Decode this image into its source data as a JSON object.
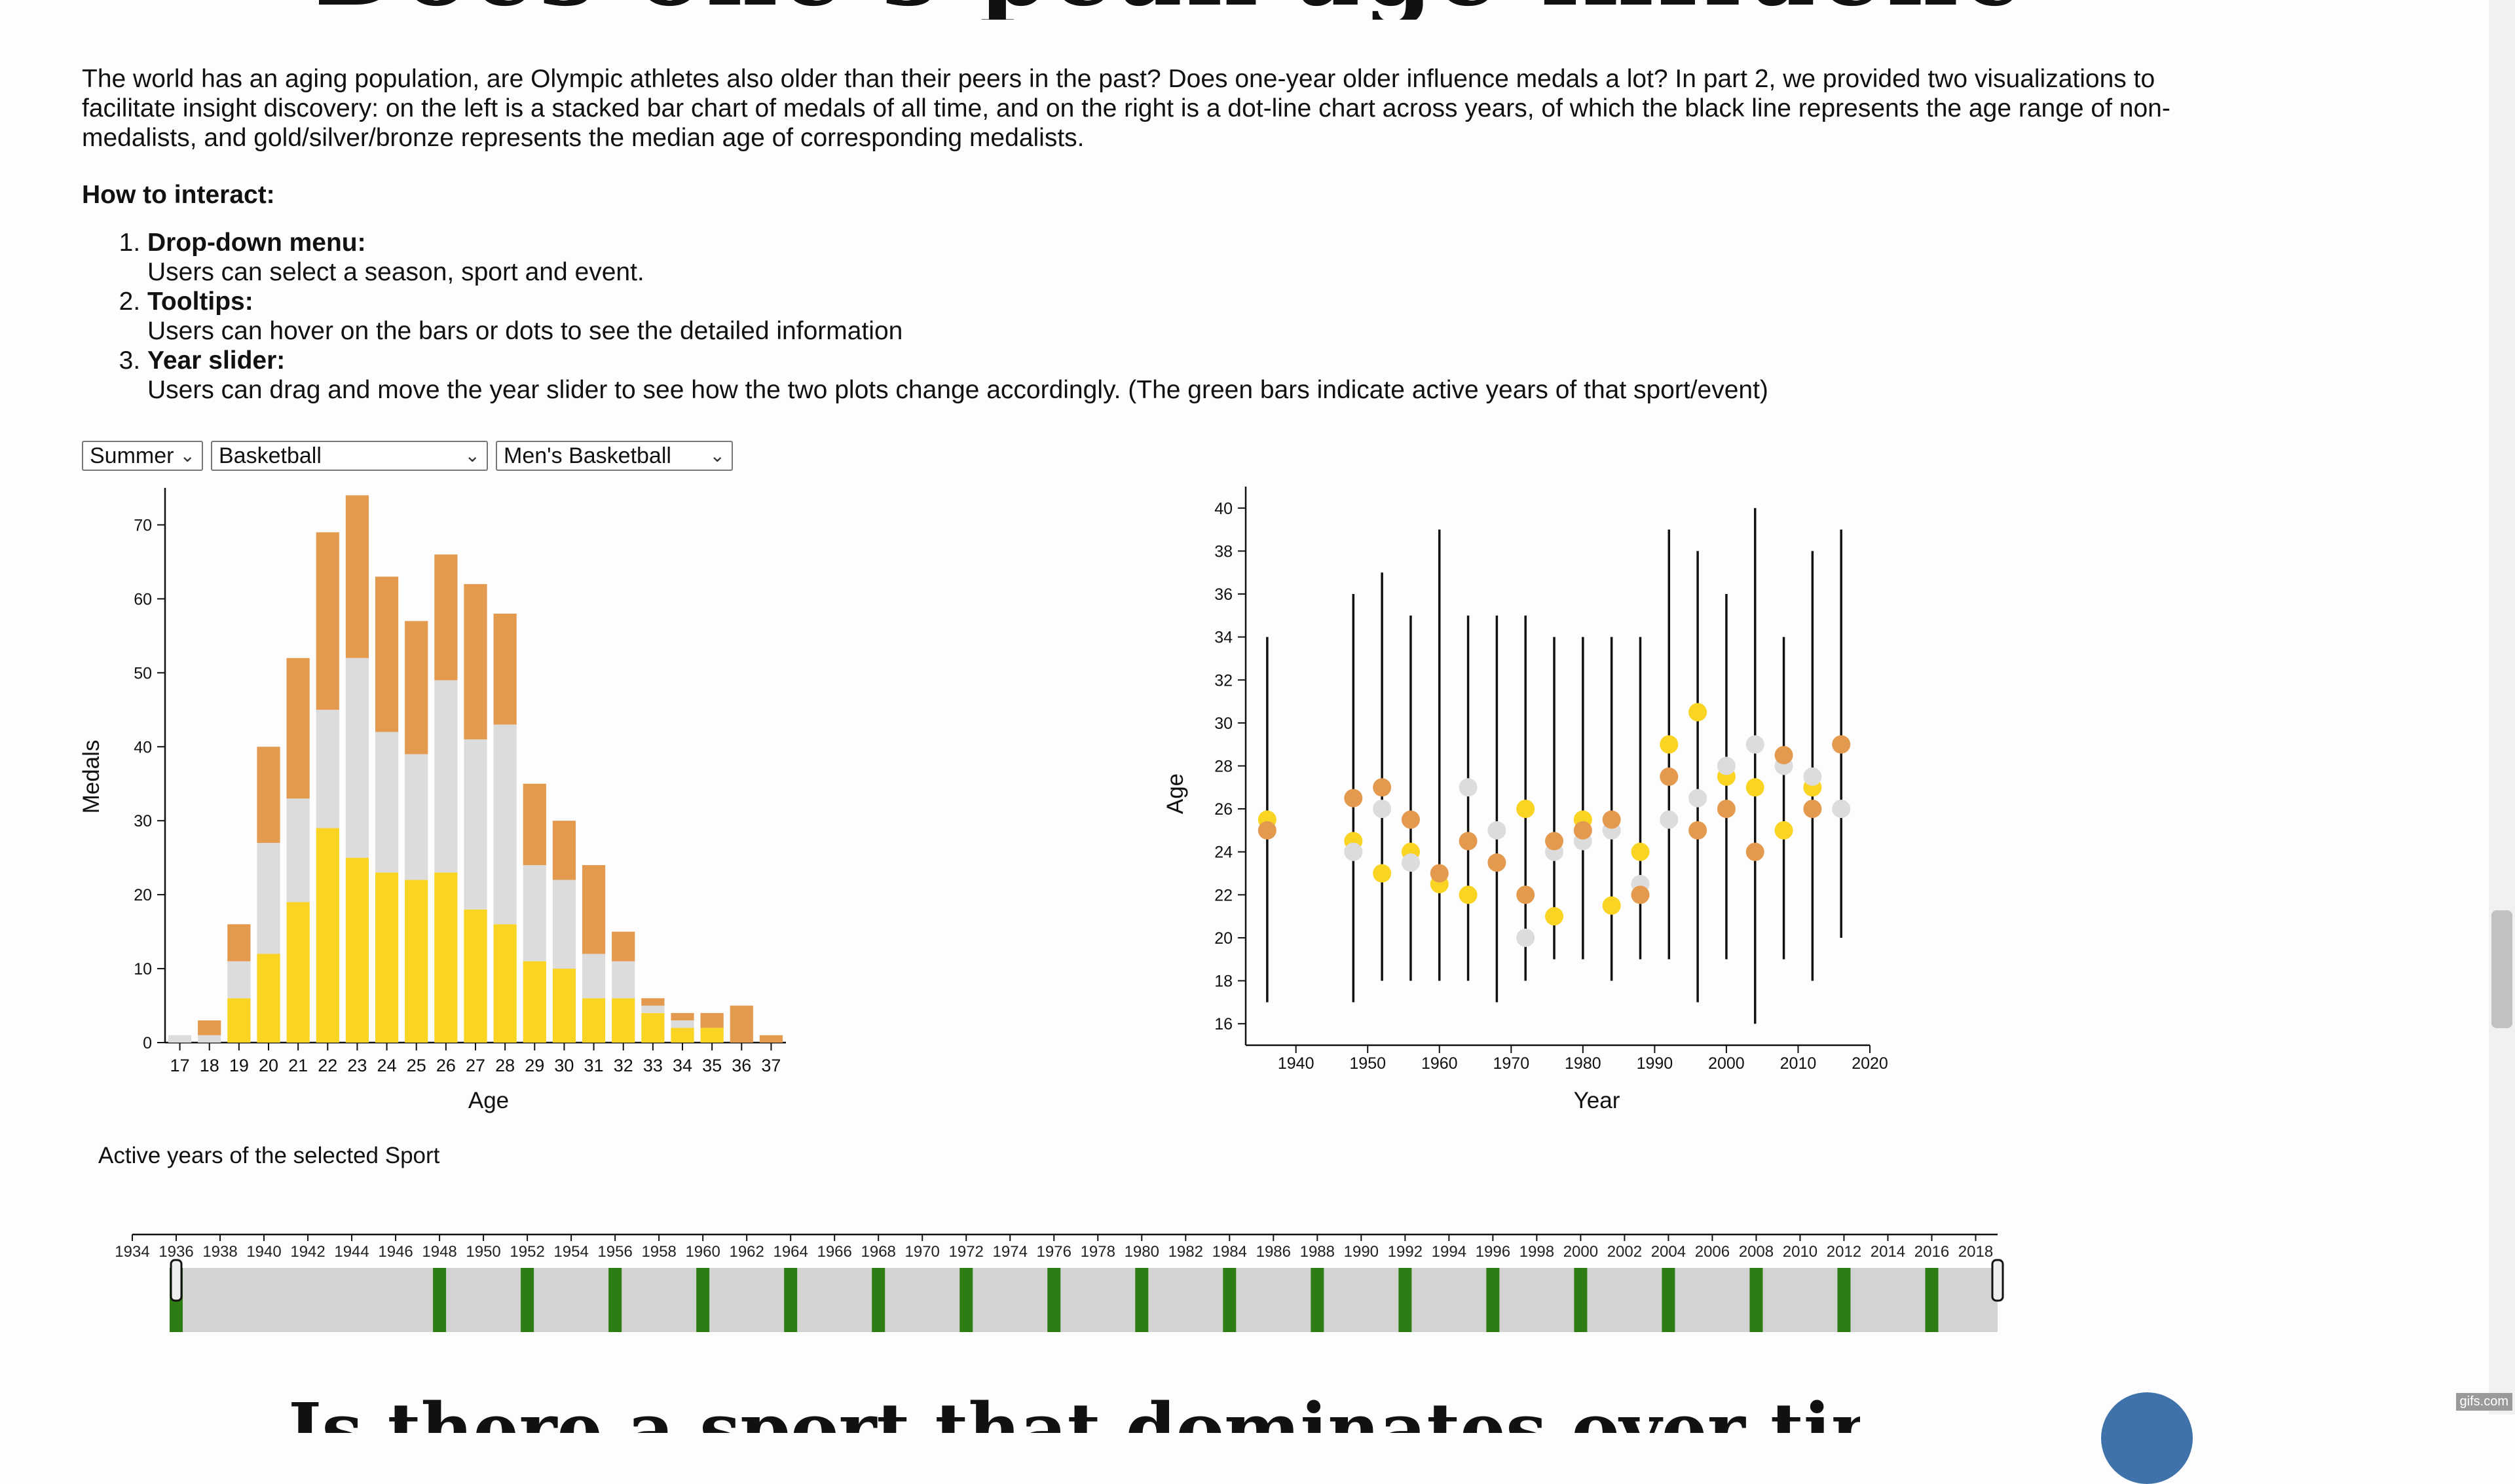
{
  "page": {
    "title_fragment": "Does one's peak age influence medals",
    "intro": "The world has an aging population, are Olympic athletes also older than their peers in the past? Does one-year older influence medals a lot? In part 2, we provided two visualizations to facilitate insight discovery: on the left is a stacked bar chart of medals of all time, and on the right is a dot-line chart across years, of which the black line represents the age range of non-medalists, and gold/silver/bronze represents the median age of corresponding medalists.",
    "howto_heading": "How to interact:",
    "steps": [
      {
        "title": "Drop-down menu:",
        "text": "Users can select a season, sport and event."
      },
      {
        "title": "Tooltips:",
        "text": "Users can hover on the bars or dots to see the detailed information"
      },
      {
        "title": "Year slider:",
        "text": "Users can drag and move the year slider to see how the two plots change accordingly. (The green bars indicate active years of that sport/event)"
      }
    ],
    "bottom_heading_fragment": "Is there a sport that dominates over time",
    "watermark": "gifs.com"
  },
  "controls": {
    "season": "Summer",
    "sport": "Basketball",
    "event": "Men's Basketball"
  },
  "slider": {
    "label": "Active years of the selected Sport",
    "ticks": [
      1934,
      1936,
      1938,
      1940,
      1942,
      1944,
      1946,
      1948,
      1950,
      1952,
      1954,
      1956,
      1958,
      1960,
      1962,
      1964,
      1966,
      1968,
      1970,
      1972,
      1974,
      1976,
      1978,
      1980,
      1982,
      1984,
      1986,
      1988,
      1990,
      1992,
      1994,
      1996,
      1998,
      2000,
      2002,
      2004,
      2006,
      2008,
      2010,
      2012,
      2014,
      2016,
      2018
    ],
    "active_years": [
      1936,
      1948,
      1952,
      1956,
      1960,
      1964,
      1968,
      1972,
      1976,
      1980,
      1984,
      1988,
      1992,
      1996,
      2000,
      2004,
      2008,
      2012,
      2016
    ],
    "range": [
      1934,
      2019
    ],
    "selection": [
      1936,
      2019
    ],
    "active_color": "#2e7d14",
    "track_color": "#d3d3d3"
  },
  "chart_data": [
    {
      "type": "bar",
      "stacked": true,
      "xlabel": "Age",
      "ylabel": "Medals",
      "ylim": [
        0,
        75
      ],
      "yticks": [
        0,
        10,
        20,
        30,
        40,
        50,
        60,
        70
      ],
      "categories": [
        "17",
        "18",
        "19",
        "20",
        "21",
        "22",
        "23",
        "24",
        "25",
        "26",
        "27",
        "28",
        "29",
        "30",
        "31",
        "32",
        "33",
        "34",
        "35",
        "36",
        "37"
      ],
      "series": [
        {
          "key": "gold",
          "color": "#f9d423",
          "values": [
            0,
            0,
            6,
            12,
            19,
            29,
            25,
            23,
            22,
            23,
            18,
            16,
            11,
            10,
            6,
            6,
            4,
            2,
            2,
            0,
            0
          ]
        },
        {
          "key": "silver",
          "color": "#dcdcdc",
          "values": [
            1,
            1,
            5,
            15,
            14,
            16,
            27,
            19,
            17,
            26,
            23,
            27,
            13,
            12,
            6,
            5,
            1,
            1,
            0,
            0,
            0
          ]
        },
        {
          "key": "bronze",
          "color": "#e39a4f",
          "values": [
            0,
            2,
            5,
            13,
            19,
            24,
            22,
            21,
            18,
            17,
            21,
            15,
            11,
            8,
            12,
            4,
            1,
            1,
            2,
            5,
            1
          ]
        }
      ]
    },
    {
      "type": "scatter",
      "subtype": "dot-line",
      "xlabel": "Year",
      "ylabel": "Age",
      "xlim": [
        1933,
        2020
      ],
      "ylim": [
        15,
        41
      ],
      "xticks": [
        1940,
        1950,
        1960,
        1970,
        1980,
        1990,
        2000,
        2010,
        2020
      ],
      "yticks": [
        16,
        18,
        20,
        22,
        24,
        26,
        28,
        30,
        32,
        34,
        36,
        38,
        40
      ],
      "range_color": "#111111",
      "ranges": [
        {
          "year": 1936,
          "min": 17,
          "max": 34
        },
        {
          "year": 1948,
          "min": 17,
          "max": 36
        },
        {
          "year": 1952,
          "min": 18,
          "max": 37
        },
        {
          "year": 1956,
          "min": 18,
          "max": 35
        },
        {
          "year": 1960,
          "min": 18,
          "max": 39
        },
        {
          "year": 1964,
          "min": 18,
          "max": 35
        },
        {
          "year": 1968,
          "min": 17,
          "max": 35
        },
        {
          "year": 1972,
          "min": 18,
          "max": 35
        },
        {
          "year": 1976,
          "min": 19,
          "max": 34
        },
        {
          "year": 1980,
          "min": 19,
          "max": 34
        },
        {
          "year": 1984,
          "min": 18,
          "max": 34
        },
        {
          "year": 1988,
          "min": 19,
          "max": 34
        },
        {
          "year": 1992,
          "min": 19,
          "max": 39
        },
        {
          "year": 1996,
          "min": 17,
          "max": 38
        },
        {
          "year": 2000,
          "min": 19,
          "max": 36
        },
        {
          "year": 2004,
          "min": 16,
          "max": 40
        },
        {
          "year": 2008,
          "min": 19,
          "max": 34
        },
        {
          "year": 2012,
          "min": 18,
          "max": 38
        },
        {
          "year": 2016,
          "min": 20,
          "max": 39
        }
      ],
      "series": [
        {
          "key": "gold",
          "color": "#f9d423",
          "points": [
            [
              1936,
              25.5
            ],
            [
              1948,
              24.5
            ],
            [
              1952,
              23
            ],
            [
              1956,
              24
            ],
            [
              1960,
              22.5
            ],
            [
              1964,
              22
            ],
            [
              1972,
              26
            ],
            [
              1976,
              21
            ],
            [
              1980,
              25.5
            ],
            [
              1984,
              21.5
            ],
            [
              1988,
              24
            ],
            [
              1992,
              29
            ],
            [
              1996,
              30.5
            ],
            [
              2000,
              27.5
            ],
            [
              2004,
              27
            ],
            [
              2008,
              25
            ],
            [
              2012,
              27
            ]
          ]
        },
        {
          "key": "silver",
          "color": "#dcdcdc",
          "points": [
            [
              1948,
              24
            ],
            [
              1952,
              26
            ],
            [
              1956,
              23.5
            ],
            [
              1964,
              27
            ],
            [
              1968,
              25
            ],
            [
              1972,
              20
            ],
            [
              1976,
              24
            ],
            [
              1980,
              24.5
            ],
            [
              1984,
              25
            ],
            [
              1988,
              22.5
            ],
            [
              1992,
              25.5
            ],
            [
              1996,
              26.5
            ],
            [
              2000,
              28
            ],
            [
              2004,
              29
            ],
            [
              2008,
              28
            ],
            [
              2012,
              27.5
            ],
            [
              2016,
              26
            ]
          ]
        },
        {
          "key": "bronze",
          "color": "#e39a4f",
          "points": [
            [
              1936,
              25
            ],
            [
              1948,
              26.5
            ],
            [
              1952,
              27
            ],
            [
              1956,
              25.5
            ],
            [
              1960,
              23
            ],
            [
              1964,
              24.5
            ],
            [
              1968,
              23.5
            ],
            [
              1972,
              22
            ],
            [
              1976,
              24.5
            ],
            [
              1980,
              25
            ],
            [
              1984,
              25.5
            ],
            [
              1988,
              22
            ],
            [
              1992,
              27.5
            ],
            [
              1996,
              25
            ],
            [
              2000,
              26
            ],
            [
              2004,
              24
            ],
            [
              2008,
              28.5
            ],
            [
              2012,
              26
            ],
            [
              2016,
              29
            ]
          ]
        }
      ]
    }
  ]
}
